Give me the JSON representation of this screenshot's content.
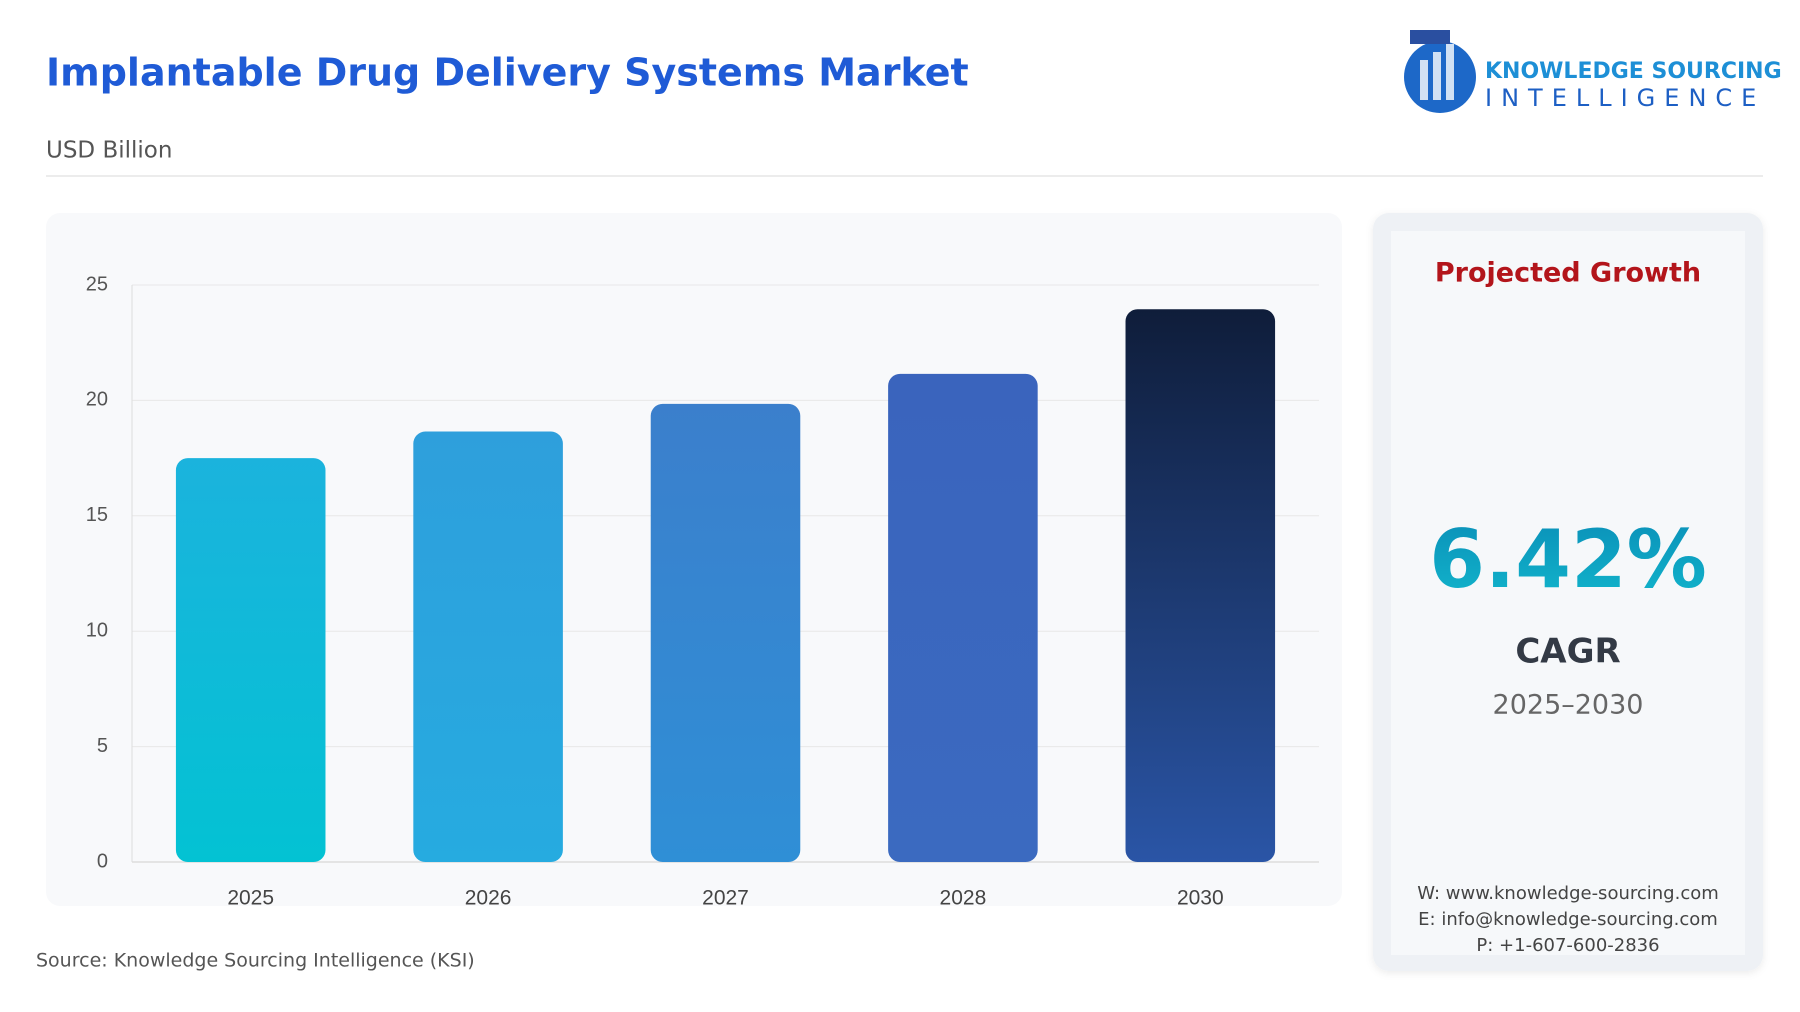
{
  "header": {
    "title": "Implantable Drug Delivery Systems Market",
    "subtitle": "USD Billion"
  },
  "logo": {
    "line1": "KNOWLEDGE SOURCING",
    "line2": "INTELLIGENCE"
  },
  "chart_data": {
    "type": "bar",
    "categories": [
      "2025",
      "2026",
      "2027",
      "2028",
      "2030"
    ],
    "values": [
      17.5,
      18.65,
      19.85,
      21.15,
      23.95
    ],
    "colors": [
      [
        "#1bb3dd",
        "#03c2d3"
      ],
      [
        "#2e9fdc",
        "#26abe0"
      ],
      [
        "#3b7fcc",
        "#2f8fd6"
      ],
      [
        "#3a64bd",
        "#3b6ac0"
      ],
      [
        "#0f1d3a",
        "#2a55a6"
      ]
    ],
    "ylim": [
      0,
      25
    ],
    "yticks": [
      0,
      5,
      10,
      15,
      20,
      25
    ],
    "grid": true
  },
  "card": {
    "heading": "Projected Growth",
    "value": "6.42%",
    "label": "CAGR",
    "period": "2025–2030",
    "web": "W: www.knowledge-sourcing.com",
    "email": "E: info@knowledge-sourcing.com",
    "phone": "P: +1-607-600-2836"
  },
  "footer": {
    "source": "Source: Knowledge Sourcing Intelligence (KSI)"
  }
}
